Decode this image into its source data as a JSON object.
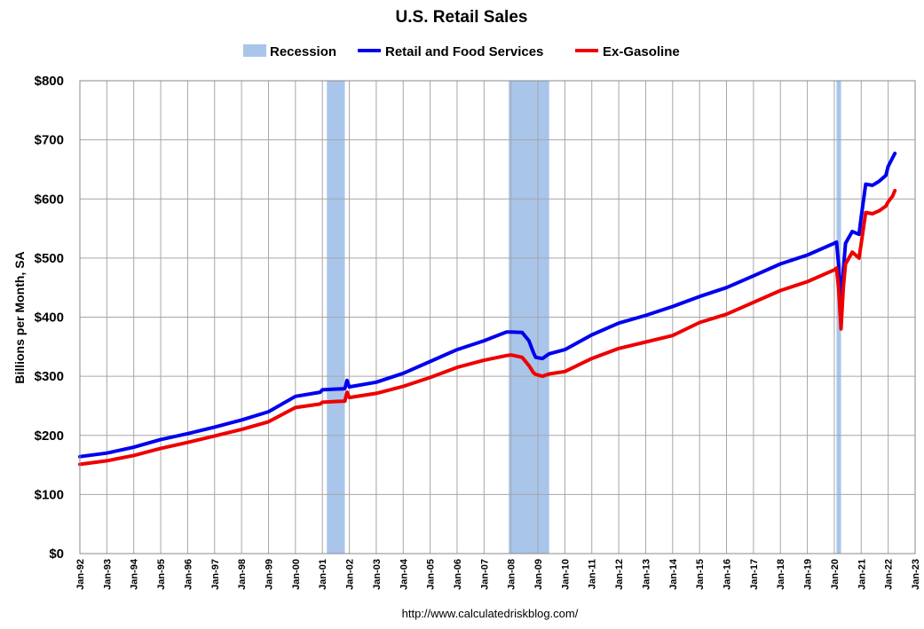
{
  "chart_data": {
    "type": "line",
    "title": "U.S. Retail Sales",
    "xlabel": "",
    "ylabel": "Billions per Month, SA",
    "ylim": [
      0,
      800
    ],
    "yticks": [
      "$0",
      "$100",
      "$200",
      "$300",
      "$400",
      "$500",
      "$600",
      "$700",
      "$800"
    ],
    "xticks": [
      "Jan-92",
      "Jan-93",
      "Jan-94",
      "Jan-95",
      "Jan-96",
      "Jan-97",
      "Jan-98",
      "Jan-99",
      "Jan-00",
      "Jan-01",
      "Jan-02",
      "Jan-03",
      "Jan-04",
      "Jan-05",
      "Jan-06",
      "Jan-07",
      "Jan-08",
      "Jan-09",
      "Jan-10",
      "Jan-11",
      "Jan-12",
      "Jan-13",
      "Jan-14",
      "Jan-15",
      "Jan-16",
      "Jan-17",
      "Jan-18",
      "Jan-19",
      "Jan-20",
      "Jan-21",
      "Jan-22",
      "Jan-23"
    ],
    "xlim": [
      "1992-01",
      "2023-01"
    ],
    "grid": true,
    "legend_position": "top",
    "legend": [
      "Recession",
      "Retail and Food Services",
      "Ex-Gasoline"
    ],
    "recessions": [
      {
        "start": "2001-03",
        "end": "2001-11"
      },
      {
        "start": "2007-12",
        "end": "2009-06"
      },
      {
        "start": "2020-02",
        "end": "2020-04"
      }
    ],
    "series": [
      {
        "name": "Retail and Food Services",
        "color": "#0000ee",
        "points": [
          [
            "1992-01",
            164
          ],
          [
            "1993-01",
            170
          ],
          [
            "1994-01",
            180
          ],
          [
            "1995-01",
            193
          ],
          [
            "1996-01",
            203
          ],
          [
            "1997-01",
            214
          ],
          [
            "1998-01",
            226
          ],
          [
            "1999-01",
            240
          ],
          [
            "2000-01",
            266
          ],
          [
            "2000-12",
            273
          ],
          [
            "2001-01",
            277
          ],
          [
            "2001-11",
            279
          ],
          [
            "2001-12",
            293
          ],
          [
            "2002-01",
            282
          ],
          [
            "2003-01",
            290
          ],
          [
            "2004-01",
            305
          ],
          [
            "2005-01",
            325
          ],
          [
            "2006-01",
            345
          ],
          [
            "2007-01",
            360
          ],
          [
            "2007-11",
            375
          ],
          [
            "2008-01",
            375
          ],
          [
            "2008-06",
            374
          ],
          [
            "2008-09",
            360
          ],
          [
            "2008-11",
            340
          ],
          [
            "2008-12",
            332
          ],
          [
            "2009-03",
            330
          ],
          [
            "2009-06",
            338
          ],
          [
            "2010-01",
            345
          ],
          [
            "2011-01",
            370
          ],
          [
            "2012-01",
            390
          ],
          [
            "2013-01",
            403
          ],
          [
            "2014-01",
            418
          ],
          [
            "2015-01",
            435
          ],
          [
            "2016-01",
            450
          ],
          [
            "2017-01",
            470
          ],
          [
            "2018-01",
            490
          ],
          [
            "2019-01",
            505
          ],
          [
            "2020-01",
            525
          ],
          [
            "2020-02",
            527
          ],
          [
            "2020-03",
            485
          ],
          [
            "2020-04",
            412
          ],
          [
            "2020-05",
            480
          ],
          [
            "2020-06",
            525
          ],
          [
            "2020-09",
            545
          ],
          [
            "2020-12",
            540
          ],
          [
            "2021-01",
            570
          ],
          [
            "2021-03",
            625
          ],
          [
            "2021-06",
            623
          ],
          [
            "2021-09",
            630
          ],
          [
            "2021-12",
            640
          ],
          [
            "2022-01",
            655
          ],
          [
            "2022-03",
            670
          ],
          [
            "2022-04",
            677
          ]
        ]
      },
      {
        "name": "Ex-Gasoline",
        "color": "#ee0000",
        "points": [
          [
            "1992-01",
            151
          ],
          [
            "1993-01",
            157
          ],
          [
            "1994-01",
            166
          ],
          [
            "1995-01",
            178
          ],
          [
            "1996-01",
            188
          ],
          [
            "1997-01",
            199
          ],
          [
            "1998-01",
            210
          ],
          [
            "1999-01",
            223
          ],
          [
            "2000-01",
            247
          ],
          [
            "2000-12",
            253
          ],
          [
            "2001-01",
            256
          ],
          [
            "2001-11",
            258
          ],
          [
            "2001-12",
            273
          ],
          [
            "2002-01",
            264
          ],
          [
            "2003-01",
            271
          ],
          [
            "2004-01",
            283
          ],
          [
            "2005-01",
            298
          ],
          [
            "2006-01",
            315
          ],
          [
            "2007-01",
            327
          ],
          [
            "2007-11",
            335
          ],
          [
            "2008-01",
            336
          ],
          [
            "2008-06",
            332
          ],
          [
            "2008-09",
            318
          ],
          [
            "2008-11",
            306
          ],
          [
            "2008-12",
            303
          ],
          [
            "2009-03",
            300
          ],
          [
            "2009-06",
            304
          ],
          [
            "2010-01",
            308
          ],
          [
            "2011-01",
            330
          ],
          [
            "2012-01",
            347
          ],
          [
            "2013-01",
            358
          ],
          [
            "2014-01",
            369
          ],
          [
            "2015-01",
            391
          ],
          [
            "2016-01",
            405
          ],
          [
            "2017-01",
            425
          ],
          [
            "2018-01",
            445
          ],
          [
            "2019-01",
            460
          ],
          [
            "2020-01",
            480
          ],
          [
            "2020-02",
            483
          ],
          [
            "2020-03",
            445
          ],
          [
            "2020-04",
            380
          ],
          [
            "2020-05",
            450
          ],
          [
            "2020-06",
            490
          ],
          [
            "2020-09",
            510
          ],
          [
            "2020-12",
            500
          ],
          [
            "2021-01",
            525
          ],
          [
            "2021-03",
            577
          ],
          [
            "2021-06",
            575
          ],
          [
            "2021-09",
            580
          ],
          [
            "2021-12",
            588
          ],
          [
            "2022-01",
            595
          ],
          [
            "2022-03",
            605
          ],
          [
            "2022-04",
            614
          ]
        ]
      }
    ],
    "source": "http://www.calculatedriskblog.com/"
  }
}
